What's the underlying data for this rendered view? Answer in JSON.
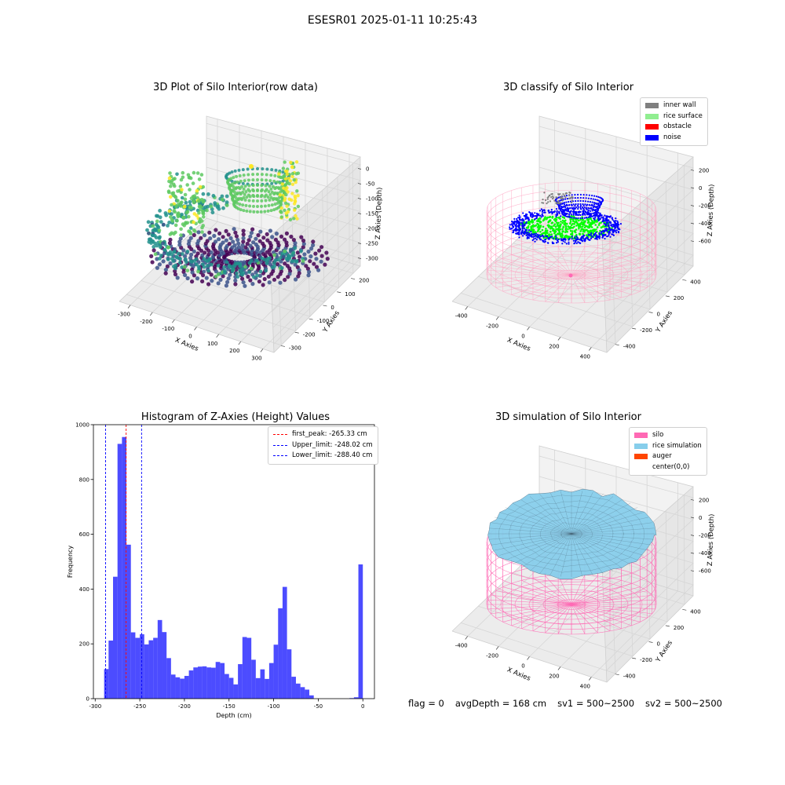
{
  "suptitle": "ESESR01 2025-01-11 10:25:43",
  "panels": {
    "raw": {
      "title": "3D Plot of Silo Interior(row data)",
      "x_label": "X Axies",
      "y_label": "Y Axies",
      "z_label": "Z Axies (Depth)",
      "x_ticks": [
        "-300",
        "-200",
        "-100",
        "0",
        "100",
        "200",
        "300"
      ],
      "y_ticks": [
        "200",
        "100",
        "0",
        "-100",
        "-200",
        "-300"
      ],
      "z_ticks": [
        "0",
        "-50",
        "-100",
        "-150",
        "-200",
        "-250",
        "-300"
      ],
      "colormap": [
        "#440154",
        "#3b528b",
        "#21918c",
        "#5ec962",
        "#fde725"
      ]
    },
    "classify": {
      "title": "3D classify of Silo Interior",
      "x_label": "X Axies",
      "y_label": "Y Axies",
      "z_label": "Z Axies (Depth)",
      "x_ticks": [
        "-400",
        "-200",
        "0",
        "200",
        "400"
      ],
      "y_ticks": [
        "400",
        "200",
        "0",
        "-200",
        "-400"
      ],
      "z_ticks": [
        "200",
        "0",
        "-200",
        "-400",
        "-600"
      ],
      "legend": [
        {
          "label": "inner wall",
          "color": "#808080"
        },
        {
          "label": "rice surface",
          "color": "#90ee90"
        },
        {
          "label": "obstacle",
          "color": "#ff0000"
        },
        {
          "label": "noise",
          "color": "#0000ff"
        }
      ],
      "wireframe_color": "#ffb6c1"
    },
    "simulation": {
      "title": "3D simulation of Silo Interior",
      "x_label": "X Axies",
      "y_label": "Y Axies",
      "z_label": "Z Axies (Depth)",
      "x_ticks": [
        "-400",
        "-200",
        "0",
        "200",
        "400"
      ],
      "y_ticks": [
        "400",
        "200",
        "0",
        "-200",
        "-400"
      ],
      "z_ticks": [
        "200",
        "0",
        "-200",
        "-400",
        "-600"
      ],
      "legend": [
        {
          "label": "silo",
          "color": "#ff69b4"
        },
        {
          "label": "rice simulation",
          "color": "#87ceeb"
        },
        {
          "label": "auger",
          "color": "#ff4500"
        },
        {
          "label": "center(0,0)",
          "color": "#ffffff"
        }
      ]
    }
  },
  "chart_data": [
    {
      "type": "bar",
      "title": "Histogram of Z-Axies (Height) Values",
      "xlabel": "Depth (cm)",
      "ylabel": "Frequency",
      "xlim": [
        -302,
        13
      ],
      "ylim": [
        0,
        1000
      ],
      "x_ticks": [
        -300,
        -250,
        -200,
        -150,
        -100,
        -50,
        0
      ],
      "y_ticks": [
        0,
        200,
        400,
        600,
        800,
        1000
      ],
      "bar_color": "#0000ff",
      "bar_alpha": 0.7,
      "bin_width": 5.0,
      "bin_starts": [
        -290,
        -285,
        -280,
        -275,
        -270,
        -265,
        -260,
        -255,
        -250,
        -245,
        -240,
        -235,
        -230,
        -225,
        -220,
        -215,
        -210,
        -205,
        -200,
        -195,
        -190,
        -185,
        -180,
        -175,
        -170,
        -165,
        -160,
        -155,
        -150,
        -145,
        -140,
        -135,
        -130,
        -125,
        -120,
        -115,
        -110,
        -105,
        -100,
        -95,
        -90,
        -85,
        -80,
        -75,
        -70,
        -65,
        -60,
        -55,
        -50,
        -45,
        -40,
        -35,
        -30,
        -25,
        -20,
        -15,
        -10,
        -5,
        0
      ],
      "values": [
        108,
        212,
        445,
        930,
        955,
        562,
        242,
        222,
        235,
        198,
        213,
        222,
        287,
        243,
        148,
        88,
        78,
        73,
        83,
        103,
        114,
        117,
        118,
        114,
        113,
        134,
        130,
        90,
        76,
        52,
        126,
        225,
        222,
        142,
        75,
        107,
        72,
        130,
        197,
        330,
        408,
        180,
        80,
        55,
        42,
        33,
        12,
        0,
        0,
        0,
        0,
        0,
        0,
        0,
        0,
        2,
        5,
        490,
        0
      ],
      "vlines": [
        {
          "label": "first_peak: -265.33 cm",
          "x": -265.33,
          "color": "#ff0000"
        },
        {
          "label": "Upper_limit: -248.02 cm",
          "x": -248.02,
          "color": "#0000ff"
        },
        {
          "label": "Lower_limit: -288.40 cm",
          "x": -288.4,
          "color": "#0000ff"
        }
      ],
      "legend_position": "upper right",
      "grid": false
    }
  ],
  "footer": {
    "flag": "flag = 0",
    "avg_depth": "avgDepth = 168 cm",
    "sv1": "sv1 = 500~2500",
    "sv2": "sv2 = 500~2500"
  }
}
